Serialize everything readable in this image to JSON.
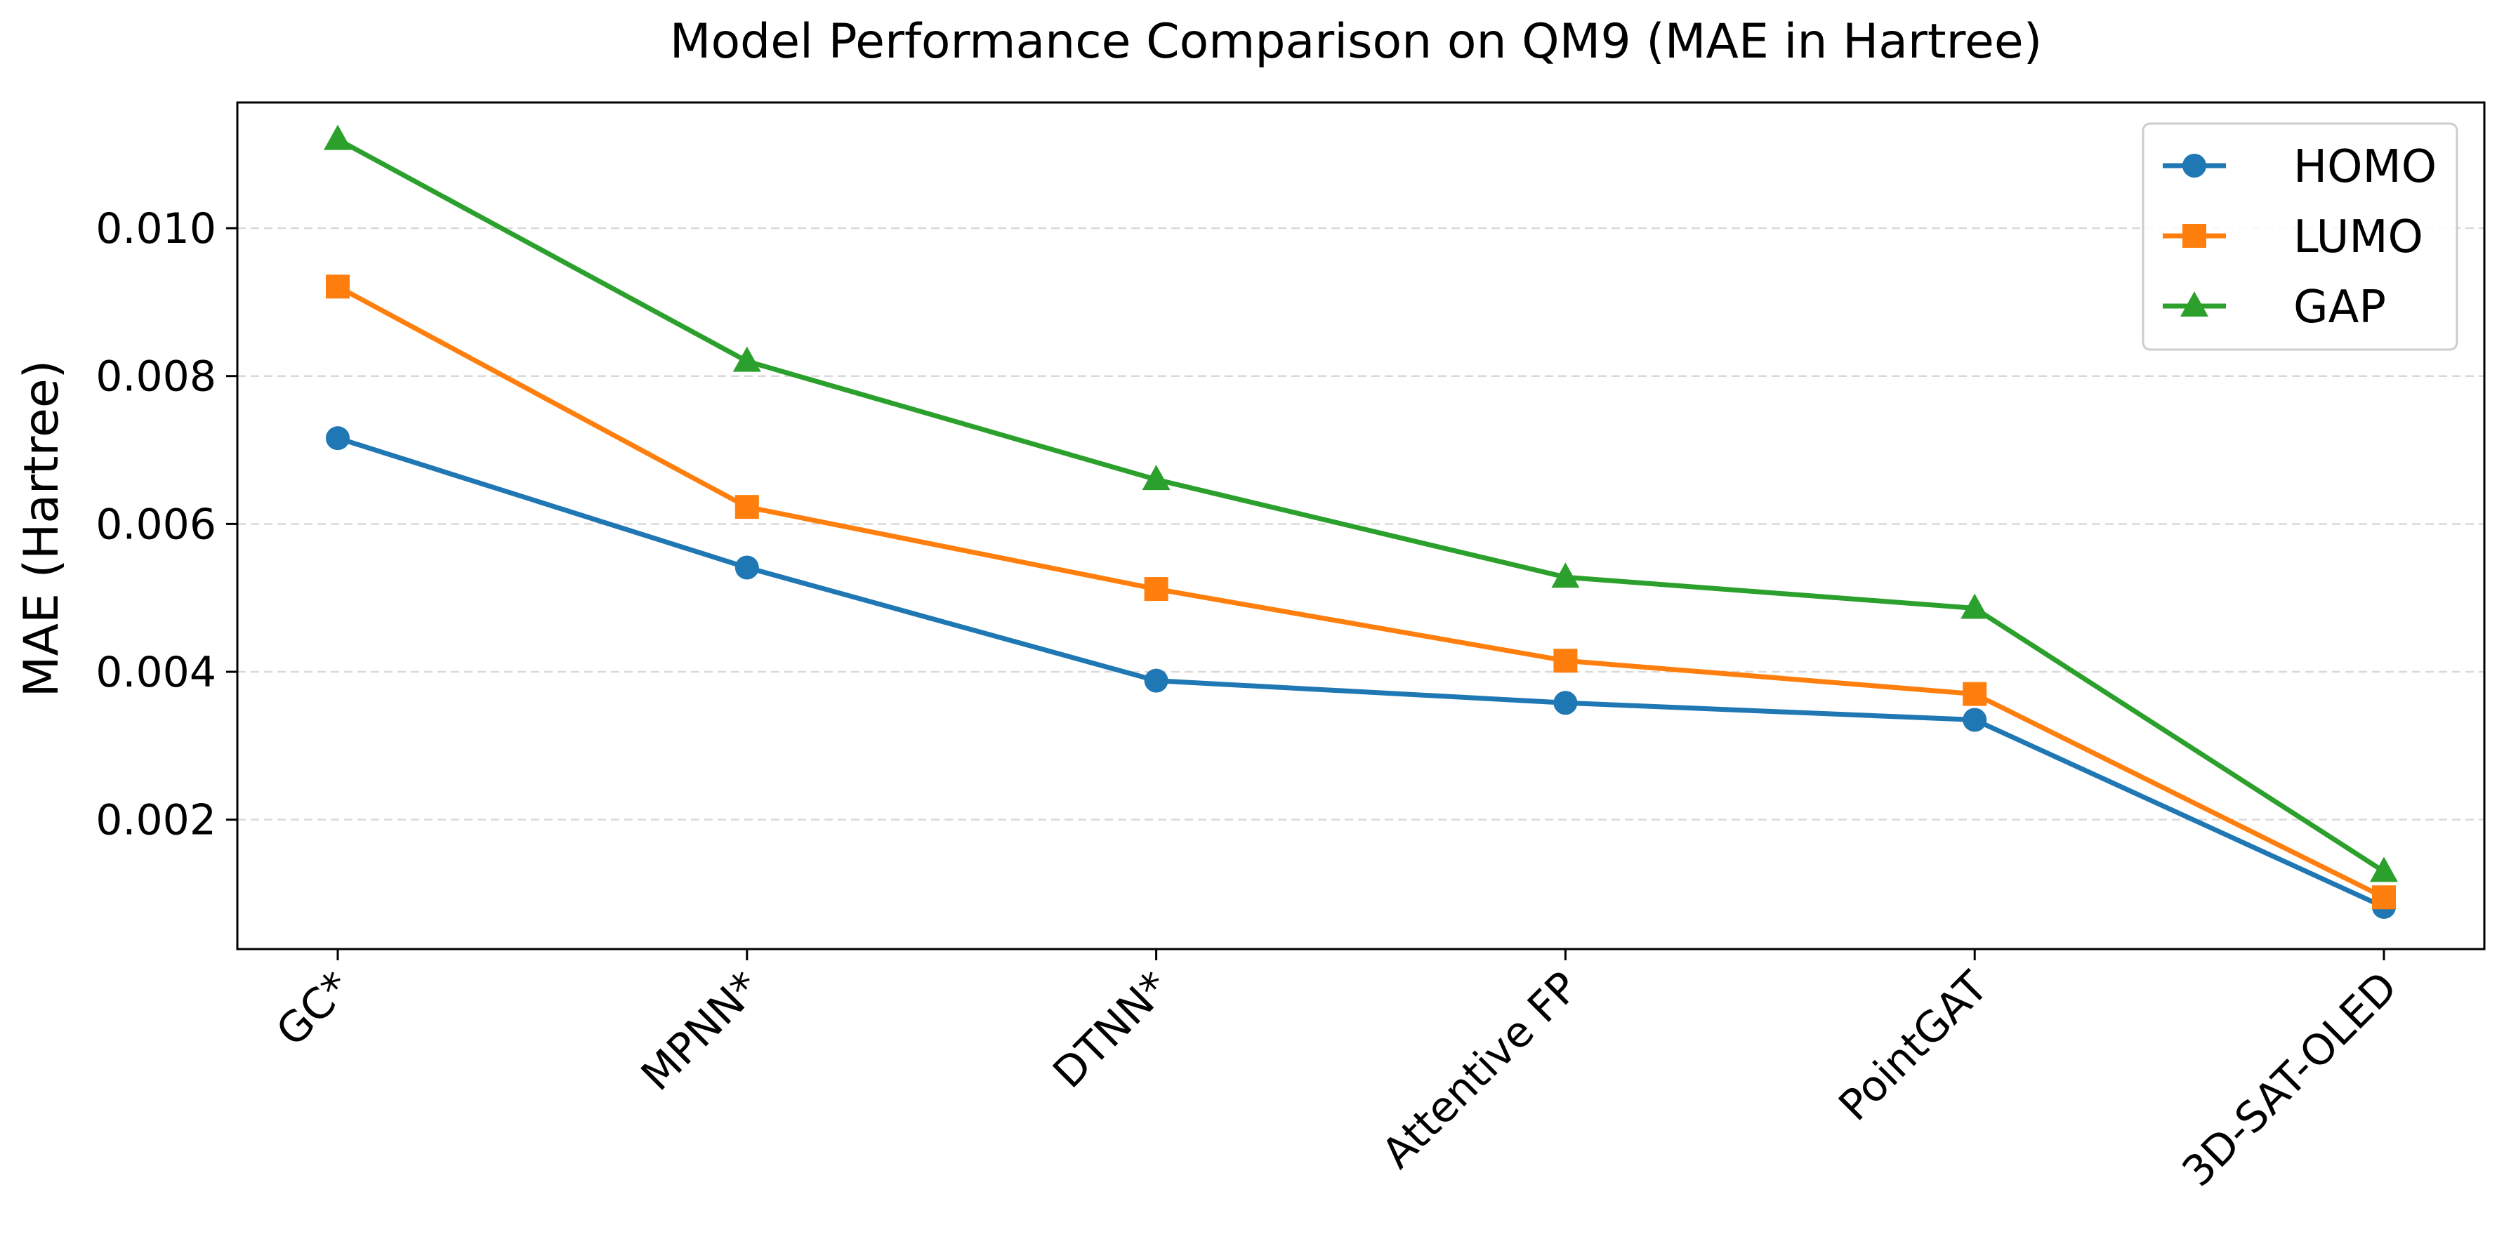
{
  "chart_data": {
    "type": "line",
    "title": "Model Performance Comparison on QM9 (MAE in Hartree)",
    "xlabel": "",
    "ylabel": "MAE (Hartree)",
    "categories": [
      "GC*",
      "MPNN*",
      "DTNN*",
      "Attentive FP",
      "PointGAT",
      "3D-SAT-OLED"
    ],
    "ylim": [
      0.00025,
      0.0117
    ],
    "yticks": [
      0.002,
      0.004,
      0.006,
      0.008,
      0.01
    ],
    "ytick_labels": [
      "0.002",
      "0.004",
      "0.006",
      "0.008",
      "0.010"
    ],
    "grid": "horizontal dashed",
    "legend_position": "top-right",
    "series": [
      {
        "name": "HOMO",
        "color": "#1f77b4",
        "marker": "circle",
        "values": [
          0.00716,
          0.00541,
          0.00388,
          0.00358,
          0.00335,
          0.00082
        ]
      },
      {
        "name": "LUMO",
        "color": "#ff7f0e",
        "marker": "square",
        "values": [
          0.00921,
          0.00623,
          0.00512,
          0.00415,
          0.0037,
          0.00095
        ]
      },
      {
        "name": "GAP",
        "color": "#2ca02c",
        "marker": "triangle",
        "values": [
          0.0112,
          0.0082,
          0.0066,
          0.00528,
          0.00486,
          0.0013
        ]
      }
    ]
  }
}
